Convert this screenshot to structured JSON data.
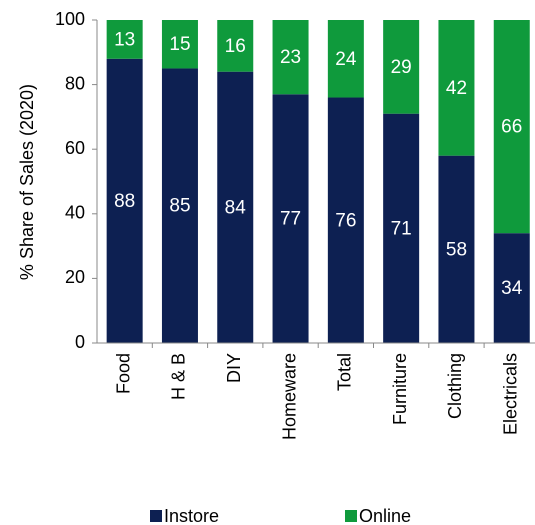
{
  "chart_data": {
    "type": "stacked_bar",
    "y_label": "% Share of Sales (2020)",
    "categories": [
      "Food",
      "H & B",
      "DIY",
      "Homeware",
      "Total",
      "Furniture",
      "Clothing",
      "Electricals"
    ],
    "series": [
      {
        "name": "Instore",
        "color": "#0d2052",
        "values": [
          88,
          85,
          84,
          77,
          76,
          71,
          58,
          34
        ]
      },
      {
        "name": "Online",
        "color": "#0f9a3c",
        "values": [
          13,
          15,
          16,
          23,
          24,
          29,
          42,
          66
        ]
      }
    ],
    "ylim": [
      0,
      100
    ],
    "yticks": [
      0,
      20,
      40,
      60,
      80,
      100
    ],
    "grid": false,
    "legend": "bottom"
  }
}
